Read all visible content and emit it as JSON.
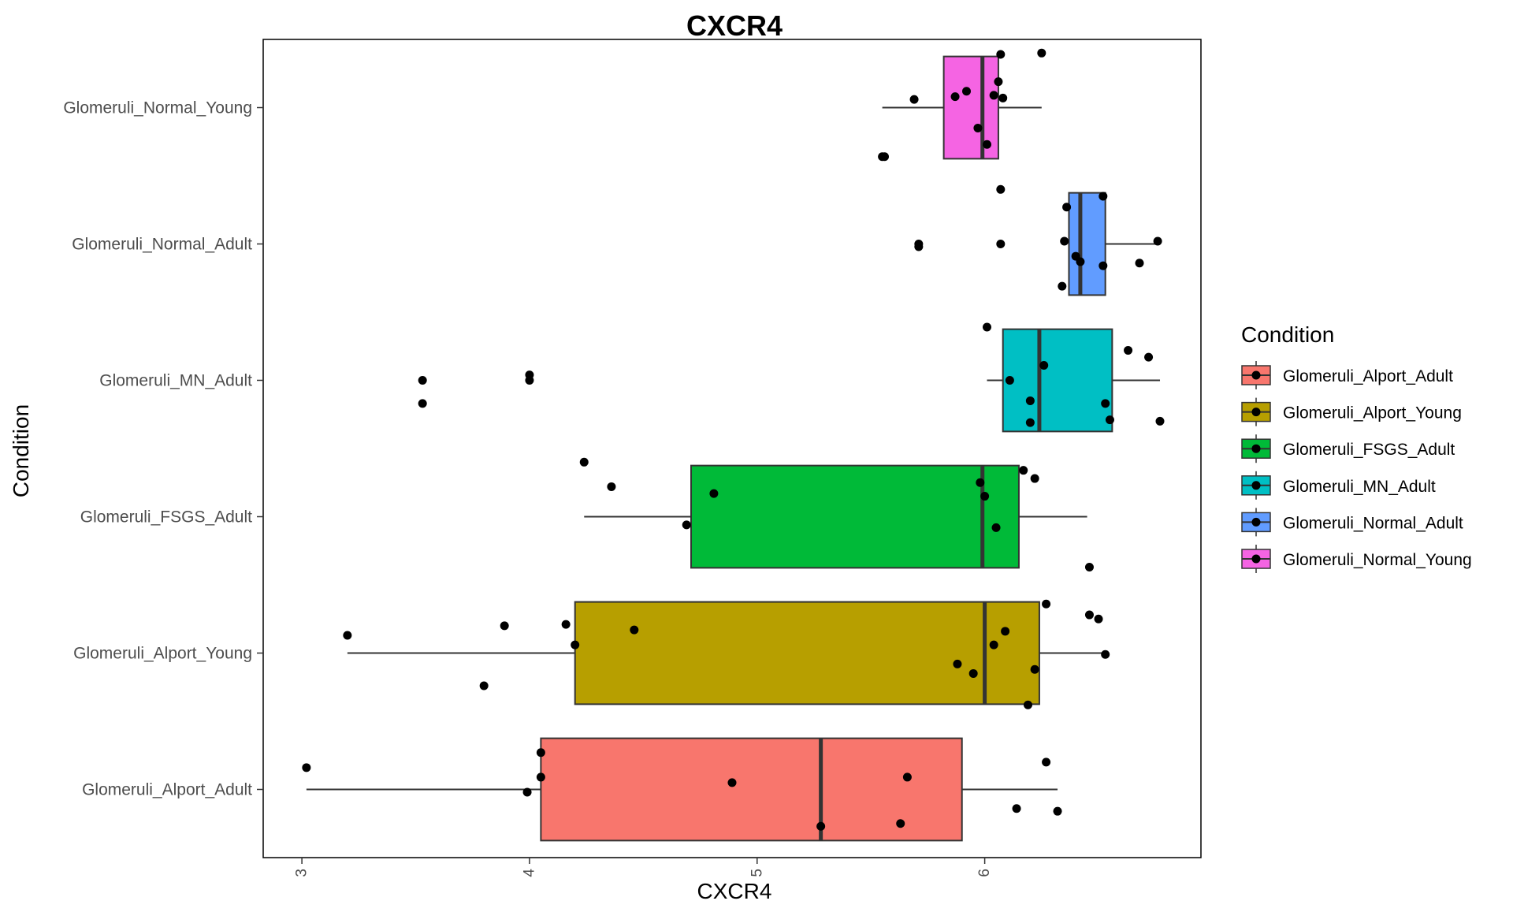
{
  "chart_data": {
    "type": "boxplot",
    "title": "CXCR4",
    "xlabel": "CXCR4",
    "ylabel": "Condition",
    "xlim": [
      2.83,
      6.95
    ],
    "x_ticks": [
      3,
      4,
      5,
      6
    ],
    "x_tick_labels": [
      "3",
      "4",
      "5",
      "6"
    ],
    "categories": [
      "Glomeruli_Alport_Adult",
      "Glomeruli_Alport_Young",
      "Glomeruli_FSGS_Adult",
      "Glomeruli_MN_Adult",
      "Glomeruli_Normal_Adult",
      "Glomeruli_Normal_Young"
    ],
    "grid": false,
    "legend": {
      "title": "Condition",
      "placement": "right",
      "entries": [
        "Glomeruli_Alport_Adult",
        "Glomeruli_Alport_Young",
        "Glomeruli_FSGS_Adult",
        "Glomeruli_MN_Adult",
        "Glomeruli_Normal_Adult",
        "Glomeruli_Normal_Young"
      ]
    },
    "series": [
      {
        "name": "Glomeruli_Alport_Adult",
        "color": "#F8766D",
        "whisker_low": 3.02,
        "q1": 4.05,
        "median": 5.28,
        "q3": 5.9,
        "whisker_high": 6.32,
        "points": [
          [
            3.02,
            0.16
          ],
          [
            4.05,
            0.27
          ],
          [
            4.05,
            0.09
          ],
          [
            3.99,
            -0.02
          ],
          [
            4.89,
            0.05
          ],
          [
            5.28,
            -0.27
          ],
          [
            5.66,
            0.09
          ],
          [
            5.63,
            -0.25
          ],
          [
            6.27,
            0.2
          ],
          [
            6.14,
            -0.14
          ],
          [
            6.32,
            -0.16
          ]
        ]
      },
      {
        "name": "Glomeruli_Alport_Young",
        "color": "#B79F00",
        "whisker_low": 3.2,
        "q1": 4.2,
        "median": 6.0,
        "q3": 6.24,
        "whisker_high": 6.53,
        "points": [
          [
            3.2,
            0.13
          ],
          [
            3.89,
            0.2
          ],
          [
            3.8,
            -0.24
          ],
          [
            4.16,
            0.21
          ],
          [
            4.2,
            0.06
          ],
          [
            4.46,
            0.17
          ],
          [
            5.88,
            -0.08
          ],
          [
            5.95,
            -0.15
          ],
          [
            6.04,
            0.06
          ],
          [
            6.09,
            0.16
          ],
          [
            6.22,
            -0.12
          ],
          [
            6.19,
            -0.38
          ],
          [
            6.27,
            0.36
          ],
          [
            6.46,
            0.28
          ],
          [
            6.5,
            0.25
          ],
          [
            6.53,
            -0.01
          ],
          [
            6.46,
            0.63
          ]
        ]
      },
      {
        "name": "Glomeruli_FSGS_Adult",
        "color": "#00BA38",
        "whisker_low": 4.24,
        "q1": 4.71,
        "median": 5.99,
        "q3": 6.15,
        "whisker_high": 6.45,
        "points": [
          [
            4.24,
            0.4
          ],
          [
            4.36,
            0.22
          ],
          [
            4.69,
            -0.06
          ],
          [
            4.81,
            0.17
          ],
          [
            5.98,
            0.25
          ],
          [
            6.0,
            0.15
          ],
          [
            6.05,
            -0.08
          ],
          [
            6.17,
            0.34
          ],
          [
            6.22,
            0.28
          ]
        ]
      },
      {
        "name": "Glomeruli_MN_Adult",
        "color": "#00BFC4",
        "whisker_low": 6.01,
        "q1": 6.08,
        "median": 6.24,
        "q3": 6.56,
        "whisker_high": 6.77,
        "points": [
          [
            3.53,
            0.0
          ],
          [
            3.53,
            -0.17
          ],
          [
            4.0,
            0.04
          ],
          [
            4.0,
            0.0
          ],
          [
            6.01,
            0.39
          ],
          [
            6.11,
            0.0
          ],
          [
            6.26,
            0.11
          ],
          [
            6.2,
            -0.15
          ],
          [
            6.2,
            -0.31
          ],
          [
            6.63,
            0.22
          ],
          [
            6.72,
            0.17
          ],
          [
            6.53,
            -0.17
          ],
          [
            6.55,
            -0.29
          ],
          [
            6.77,
            -0.3
          ]
        ]
      },
      {
        "name": "Glomeruli_Normal_Adult",
        "color": "#619CFF",
        "whisker_low": 6.37,
        "q1": 6.37,
        "median": 6.42,
        "q3": 6.53,
        "whisker_high": 6.76,
        "points": [
          [
            5.71,
            0.0
          ],
          [
            5.71,
            -0.02
          ],
          [
            6.07,
            0.4
          ],
          [
            6.07,
            0.0
          ],
          [
            6.36,
            0.27
          ],
          [
            6.35,
            0.02
          ],
          [
            6.4,
            -0.09
          ],
          [
            6.42,
            -0.13
          ],
          [
            6.34,
            -0.31
          ],
          [
            6.52,
            0.35
          ],
          [
            6.52,
            -0.16
          ],
          [
            6.68,
            -0.14
          ],
          [
            6.76,
            0.02
          ]
        ]
      },
      {
        "name": "Glomeruli_Normal_Young",
        "color": "#F564E3",
        "whisker_low": 5.55,
        "q1": 5.82,
        "median": 5.99,
        "q3": 6.06,
        "whisker_high": 6.25,
        "points": [
          [
            5.55,
            -0.36
          ],
          [
            5.56,
            -0.36
          ],
          [
            5.69,
            0.06
          ],
          [
            5.87,
            0.08
          ],
          [
            5.92,
            0.12
          ],
          [
            5.97,
            -0.15
          ],
          [
            6.01,
            -0.27
          ],
          [
            6.04,
            0.09
          ],
          [
            6.06,
            0.19
          ],
          [
            6.07,
            0.39
          ],
          [
            6.08,
            0.07
          ],
          [
            6.25,
            0.4
          ]
        ]
      }
    ]
  }
}
